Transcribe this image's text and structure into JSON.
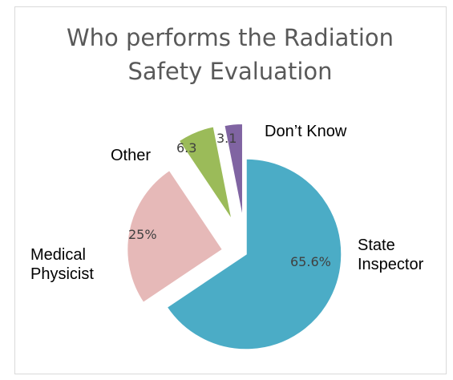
{
  "chart_data": {
    "type": "pie",
    "title": "Who performs the Radiation\nSafety Evaluation",
    "categories": [
      "State\nInspector",
      "Medical\nPhysicist",
      "Other",
      "Don’t Know"
    ],
    "values": [
      65.6,
      25,
      6.3,
      3.1
    ],
    "value_labels": [
      "65.6%",
      "25%",
      "6.3",
      "3.1"
    ],
    "colors": [
      "#4bacc6",
      "#e6b9b8",
      "#9bbb59",
      "#8064a2"
    ]
  }
}
